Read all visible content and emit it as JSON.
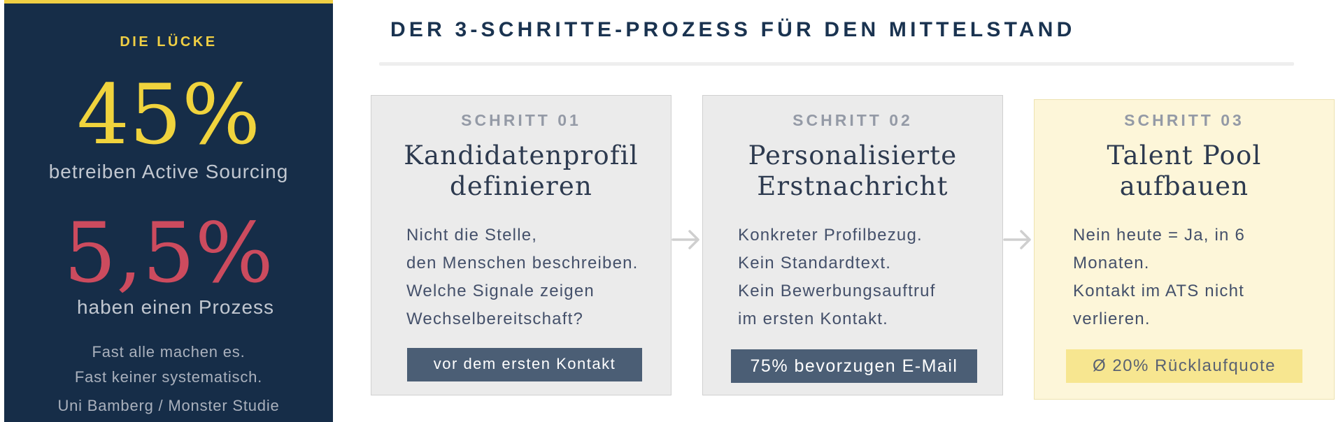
{
  "gap": {
    "kicker": "DIE LÜCKE",
    "stat_one": "45%",
    "stat_one_label": "betreiben Active Sourcing",
    "stat_two": "5,5%",
    "stat_two_label": "haben einen Prozess",
    "note_line1": "Fast alle machen es.",
    "note_line2": "Fast keiner systematisch.",
    "source": "Uni Bamberg / Monster Studie",
    "accent_color": "#f0cf44",
    "alert_color": "#cc4b5e",
    "background_color": "#162d48"
  },
  "process": {
    "title": "DER 3-SCHRITTE-PROZESS FÜR DEN MITTELSTAND",
    "arrow_icon": "arrow-right-icon",
    "steps": [
      {
        "label": "SCHRITT 01",
        "heading": [
          "Kandidatenprofil",
          "definieren"
        ],
        "body": [
          "Nicht die Stelle,",
          "den Menschen beschreiben.",
          "Welche Signale zeigen",
          "Wechselbereitschaft?"
        ],
        "tag": "vor dem ersten Kontakt"
      },
      {
        "label": "SCHRITT 02",
        "heading": [
          "Personalisierte",
          "Erstnachricht"
        ],
        "body": [
          "Konkreter Profilbezug.",
          "Kein Standardtext.",
          "Kein Bewerbungsauftruf",
          "im ersten Kontakt."
        ],
        "tag": "75% bevorzugen E-Mail"
      },
      {
        "label": "SCHRITT 03",
        "heading": [
          "Talent Pool",
          "aufbauen"
        ],
        "body": [
          "Nein heute = Ja,  in 6",
          "Monaten.",
          "Kontakt im ATS nicht",
          "verlieren."
        ],
        "tag": "Ø 20% Rücklaufquote",
        "highlight_color": "#fdf6d9"
      }
    ]
  }
}
